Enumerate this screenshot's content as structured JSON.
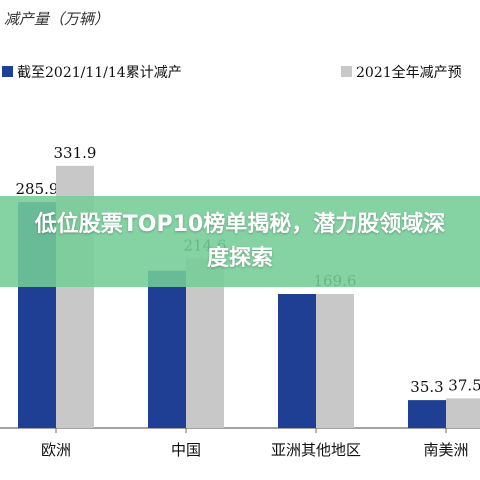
{
  "banner": {
    "text": "低位股票TOP10榜单揭秘，潜力股领域深度探索"
  },
  "colors": {
    "series1": "#1f3f94",
    "series2": "#c8c8c8",
    "axis": "#6b6b6b",
    "banner": "#74cc96"
  },
  "chart_data": {
    "type": "bar",
    "title": "",
    "ylabel": "减产量（万辆）",
    "categories": [
      "欧洲",
      "中国",
      "亚洲其他地区",
      "南美洲"
    ],
    "series": [
      {
        "name": "截至2021/11/14累计减产",
        "values": [
          285.9,
          199.0,
          169.6,
          35.3
        ]
      },
      {
        "name": "2021全年减产预",
        "values": [
          331.9,
          214.6,
          169.6,
          37.5
        ]
      }
    ],
    "value_labels": [
      [
        "285.9",
        null,
        null,
        "35.3"
      ],
      [
        "331.9",
        "214.6",
        "169.6",
        "37.5"
      ]
    ],
    "legend_placement": "top",
    "grid": false
  }
}
